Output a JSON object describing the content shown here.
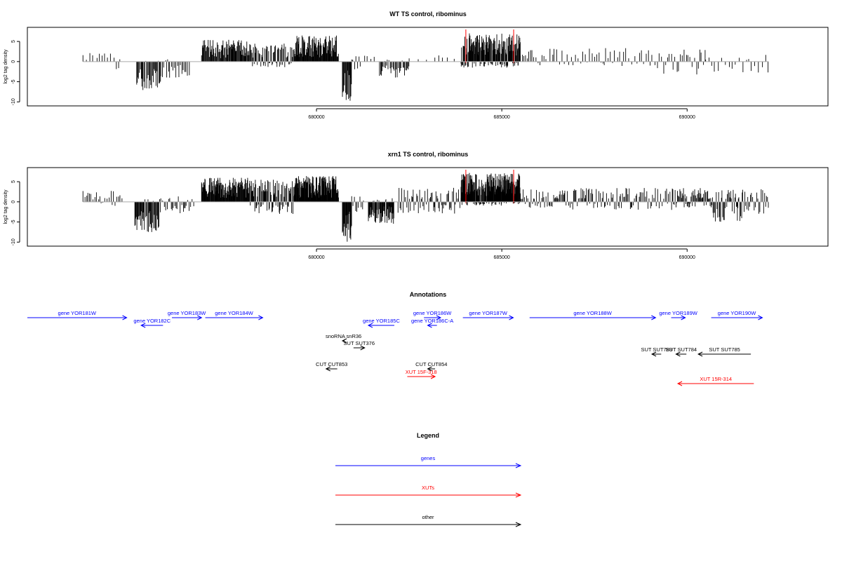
{
  "chart_data": [
    {
      "type": "bar",
      "title": "WT TS control, ribominus",
      "xlabel": "",
      "ylabel": "log2 tag density",
      "xlim": [
        672200,
        693800
      ],
      "ylim": [
        -11,
        8.5
      ],
      "y_ticks": [
        -10,
        -5,
        0,
        5
      ],
      "x_ticks": [
        680000,
        685000,
        690000
      ],
      "highlight_x": [
        684030,
        685320
      ],
      "baseline_range": [
        673700,
        692200
      ],
      "segments": [
        {
          "from": 673700,
          "to": 674600,
          "min": 0,
          "max": 2.2,
          "step": 90
        },
        {
          "from": 674600,
          "to": 674750,
          "min": -2,
          "max": 1.5,
          "step": 50
        },
        {
          "from": 675150,
          "to": 675800,
          "min": -7.5,
          "max": 0.5,
          "step": 20
        },
        {
          "from": 675800,
          "to": 676600,
          "min": -4,
          "max": 1.2,
          "step": 40
        },
        {
          "from": 676900,
          "to": 678200,
          "min": 0,
          "max": 5.5,
          "step": 16
        },
        {
          "from": 678200,
          "to": 679400,
          "min": -1.5,
          "max": 4.5,
          "step": 18
        },
        {
          "from": 679400,
          "to": 680600,
          "min": 0,
          "max": 6.5,
          "step": 12
        },
        {
          "from": 680700,
          "to": 680950,
          "min": -9.8,
          "max": 0,
          "step": 14
        },
        {
          "from": 680950,
          "to": 681200,
          "min": -3,
          "max": 1.5,
          "step": 40
        },
        {
          "from": 681300,
          "to": 681600,
          "min": 0,
          "max": 1.5,
          "step": 80
        },
        {
          "from": 681700,
          "to": 682500,
          "min": -4,
          "max": 0.5,
          "step": 25
        },
        {
          "from": 682500,
          "to": 683200,
          "min": 0,
          "max": 1,
          "step": 180
        },
        {
          "from": 683300,
          "to": 683900,
          "min": -1,
          "max": 2,
          "step": 140
        },
        {
          "from": 683900,
          "to": 685500,
          "min": -1.5,
          "max": 7,
          "step": 9
        },
        {
          "from": 685500,
          "to": 686200,
          "min": -1,
          "max": 3,
          "step": 45
        },
        {
          "from": 686300,
          "to": 687800,
          "min": -1,
          "max": 3.5,
          "step": 55
        },
        {
          "from": 687800,
          "to": 689200,
          "min": -1.5,
          "max": 3.5,
          "step": 65
        },
        {
          "from": 689200,
          "to": 690500,
          "min": -3.2,
          "max": 3.5,
          "step": 50
        },
        {
          "from": 690500,
          "to": 692200,
          "min": -2.8,
          "max": 1.8,
          "step": 80
        }
      ]
    },
    {
      "type": "bar",
      "title": "xrn1 TS control, ribominus",
      "xlabel": "",
      "ylabel": "log2 tag density",
      "xlim": [
        672200,
        693800
      ],
      "ylim": [
        -11,
        8.5
      ],
      "y_ticks": [
        -10,
        -5,
        0,
        5
      ],
      "x_ticks": [
        680000,
        685000,
        690000
      ],
      "highlight_x": [
        684030,
        685320
      ],
      "baseline_range": [
        673700,
        692200
      ],
      "segments": [
        {
          "from": 673700,
          "to": 674800,
          "min": -1,
          "max": 2.8,
          "step": 45
        },
        {
          "from": 675100,
          "to": 675800,
          "min": -7.5,
          "max": 0.8,
          "step": 16
        },
        {
          "from": 675800,
          "to": 676700,
          "min": -3,
          "max": 1.5,
          "step": 35
        },
        {
          "from": 676900,
          "to": 678200,
          "min": 0,
          "max": 6,
          "step": 12
        },
        {
          "from": 678200,
          "to": 679400,
          "min": -3,
          "max": 5.5,
          "step": 14
        },
        {
          "from": 679400,
          "to": 680600,
          "min": 0,
          "max": 6.5,
          "step": 10
        },
        {
          "from": 680700,
          "to": 680950,
          "min": -10,
          "max": 0,
          "step": 12
        },
        {
          "from": 680950,
          "to": 681300,
          "min": -2.5,
          "max": 1.5,
          "step": 35
        },
        {
          "from": 681400,
          "to": 682100,
          "min": -5.5,
          "max": 1,
          "step": 12
        },
        {
          "from": 682200,
          "to": 683900,
          "min": -3,
          "max": 3.5,
          "step": 28
        },
        {
          "from": 683900,
          "to": 685500,
          "min": -1,
          "max": 7.2,
          "step": 7
        },
        {
          "from": 685500,
          "to": 686700,
          "min": -1.5,
          "max": 3.2,
          "step": 28
        },
        {
          "from": 686700,
          "to": 688200,
          "min": -2,
          "max": 3.5,
          "step": 30
        },
        {
          "from": 688200,
          "to": 689600,
          "min": -2,
          "max": 3.5,
          "step": 32
        },
        {
          "from": 689600,
          "to": 690700,
          "min": -1.5,
          "max": 3.5,
          "step": 18
        },
        {
          "from": 690700,
          "to": 691500,
          "min": -5,
          "max": 3,
          "step": 20
        },
        {
          "from": 691500,
          "to": 692200,
          "min": -3,
          "max": 3.2,
          "step": 30
        }
      ]
    }
  ],
  "annotations": {
    "title": "Annotations",
    "colors": {
      "gene": "#0000ff",
      "xut": "#ff0000",
      "other": "#000000"
    },
    "features": [
      {
        "label": "gene YOR181W",
        "kind": "gene",
        "start": 672200,
        "end": 674880,
        "dir": "+",
        "row": 0
      },
      {
        "label": "gene YOR182C",
        "kind": "gene",
        "start": 675270,
        "end": 675860,
        "dir": "-",
        "row": 1
      },
      {
        "label": "gene YOR183W",
        "kind": "gene",
        "start": 676100,
        "end": 676900,
        "dir": "+",
        "row": 0
      },
      {
        "label": "gene YOR184W",
        "kind": "gene",
        "start": 677000,
        "end": 678550,
        "dir": "+",
        "row": 0
      },
      {
        "label": "gene YOR185C",
        "kind": "gene",
        "start": 681400,
        "end": 682100,
        "dir": "-",
        "row": 1
      },
      {
        "label": "gene YOR186W",
        "kind": "gene",
        "start": 682900,
        "end": 683350,
        "dir": "+",
        "row": 0
      },
      {
        "label": "gene YOR186C-A",
        "kind": "gene",
        "start": 683000,
        "end": 683250,
        "dir": "-",
        "row": 1
      },
      {
        "label": "gene YOR187W",
        "kind": "gene",
        "start": 683950,
        "end": 685310,
        "dir": "+",
        "row": 0
      },
      {
        "label": "gene YOR188W",
        "kind": "gene",
        "start": 685750,
        "end": 689150,
        "dir": "+",
        "row": 0
      },
      {
        "label": "gene YOR189W",
        "kind": "gene",
        "start": 689570,
        "end": 689950,
        "dir": "+",
        "row": 0
      },
      {
        "label": "gene YOR190W",
        "kind": "gene",
        "start": 690650,
        "end": 692030,
        "dir": "+",
        "row": 0
      },
      {
        "label": "snoRNA snR36",
        "kind": "other",
        "start": 680700,
        "end": 680760,
        "dir": "-",
        "row": 2
      },
      {
        "label": "SUT SUT376",
        "kind": "other",
        "start": 681000,
        "end": 681300,
        "dir": "+",
        "row": 3
      },
      {
        "label": "CUT CUT853",
        "kind": "other",
        "start": 680260,
        "end": 680560,
        "dir": "-",
        "row": 5
      },
      {
        "label": "CUT CUT854",
        "kind": "other",
        "start": 683000,
        "end": 683200,
        "dir": "-",
        "row": 5
      },
      {
        "label": "XUT 15F-318",
        "kind": "xut",
        "start": 682450,
        "end": 683200,
        "dir": "+",
        "row": 6
      },
      {
        "label": "SUT SUT783",
        "kind": "other",
        "start": 689050,
        "end": 689300,
        "dir": "-",
        "row": 4
      },
      {
        "label": "SUT SUT784",
        "kind": "other",
        "start": 689700,
        "end": 689980,
        "dir": "-",
        "row": 4
      },
      {
        "label": "SUT SUT785",
        "kind": "other",
        "start": 690300,
        "end": 691720,
        "dir": "-",
        "row": 4
      },
      {
        "label": "XUT 15R-314",
        "kind": "xut",
        "start": 689750,
        "end": 691800,
        "dir": "-",
        "row": 7
      }
    ]
  },
  "legend": {
    "title": "Legend",
    "items": [
      {
        "label": "genes",
        "kind": "gene"
      },
      {
        "label": "XUTs",
        "kind": "xut"
      },
      {
        "label": "other",
        "kind": "other"
      }
    ]
  }
}
